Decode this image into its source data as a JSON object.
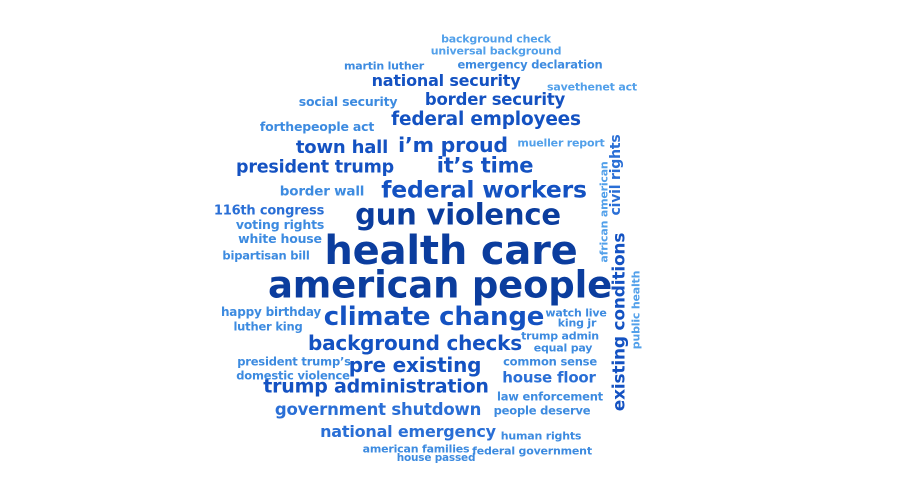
{
  "words": [
    "background check",
    "universal background",
    "martin luther",
    "emergency declaration",
    "savethenet act",
    "national security",
    "social security",
    "border security",
    "federal employees",
    "forthepeople act",
    "mueller report",
    "town hall",
    "i’m proud",
    "president trump",
    "it’s time",
    "border wall",
    "federal workers",
    "116th congress",
    "gun violence",
    "voting rights",
    "white house",
    "health care",
    "bipartisan bill",
    "american people",
    "happy birthday",
    "climate change",
    "watch live",
    "luther king",
    "king jr",
    "trump admin",
    "background checks",
    "president trump’s",
    "pre existing",
    "common sense",
    "equal pay",
    "domestic violence",
    "house floor",
    "trump administration",
    "law enforcement",
    "government shutdown",
    "people deserve",
    "national emergency",
    "human rights",
    "american families",
    "federal government",
    "house passed",
    "existing conditions",
    "civil rights",
    "african american",
    "public health"
  ]
}
